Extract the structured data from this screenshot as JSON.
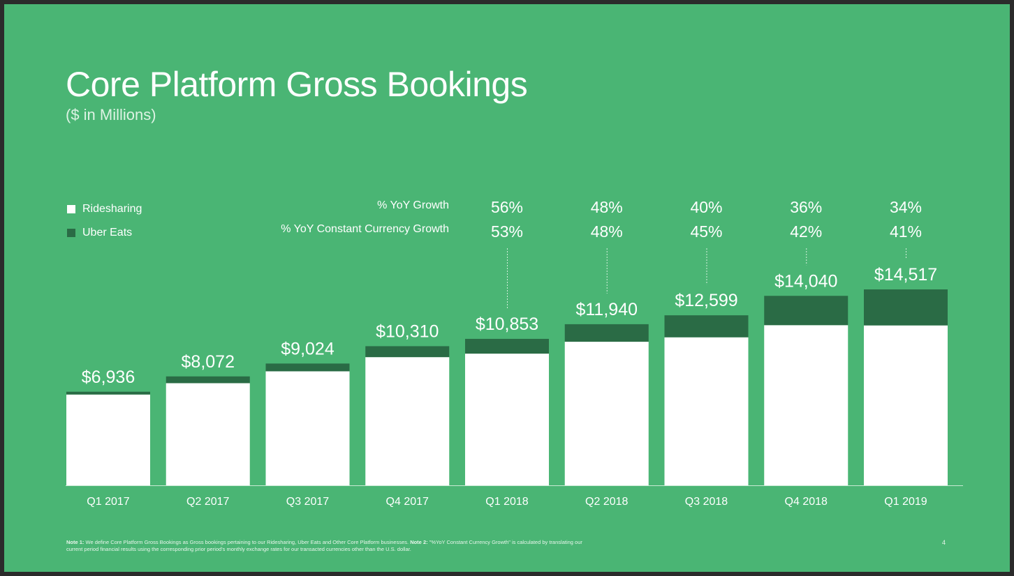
{
  "slide": {
    "title": "Core Platform Gross Bookings",
    "subtitle": "($ in Millions)",
    "growth_label_reported": "% YoY Growth",
    "growth_label_cc": "% YoY Constant Currency Growth",
    "note1_label": "Note 1:",
    "note1_text": " We define Core Platform Gross Bookings as Gross bookings pertaining to our Ridesharing, Uber Eats and Other Core Platform businesses. ",
    "note2_label": "Note 2:",
    "note2_text": " \"%YoY Constant Currency Growth\" is calculated by translating our current period financial results using the corresponding prior period's monthly exchange rates for our transacted currencies other than the U.S. dollar.",
    "page_number": "4"
  },
  "colors": {
    "background": "#4ab574",
    "ridesharing": "#ffffff",
    "uber_eats": "#2a6b45",
    "text": "#ffffff"
  },
  "chart_data": {
    "type": "bar",
    "stacked": true,
    "categories": [
      "Q1 2017",
      "Q2 2017",
      "Q3 2017",
      "Q4 2017",
      "Q1 2018",
      "Q2 2018",
      "Q3 2018",
      "Q4 2018",
      "Q1 2019"
    ],
    "series": [
      {
        "name": "Ridesharing",
        "color": "#ffffff",
        "values": [
          6730,
          7570,
          8450,
          9500,
          9760,
          10640,
          10970,
          11870,
          11850
        ]
      },
      {
        "name": "Uber Eats",
        "color": "#2a6b45",
        "values": [
          206,
          502,
          574,
          810,
          1093,
          1300,
          1629,
          2170,
          2667
        ]
      }
    ],
    "totals": [
      6936,
      8072,
      9024,
      10310,
      10853,
      11940,
      12599,
      14040,
      14517
    ],
    "total_labels": [
      "$6,936",
      "$8,072",
      "$9,024",
      "$10,310",
      "$10,853",
      "$11,940",
      "$12,599",
      "$14,040",
      "$14,517"
    ],
    "yoy_growth": [
      "",
      "",
      "",
      "",
      "56%",
      "48%",
      "40%",
      "36%",
      "34%"
    ],
    "yoy_cc_growth": [
      "",
      "",
      "",
      "",
      "53%",
      "48%",
      "45%",
      "42%",
      "41%"
    ],
    "ylim": [
      0,
      15500
    ],
    "legend_position": "top-left",
    "grid": false
  }
}
